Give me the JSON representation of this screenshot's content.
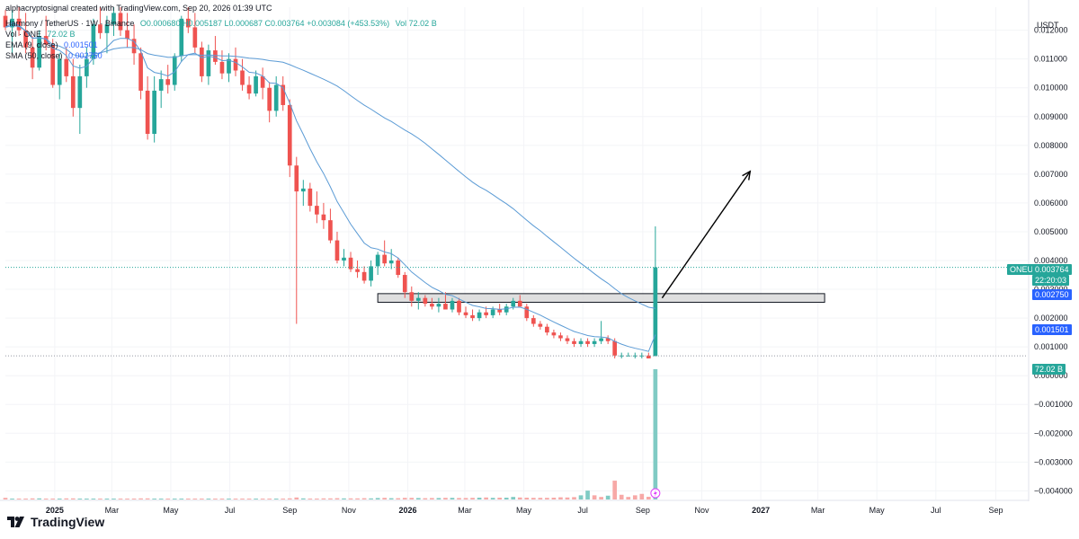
{
  "header": {
    "line1": "alphacryptosignal created with TradingView.com, Sep 20, 2026 01:39 UTC",
    "line2_symbol": "Harmony / TetherUS · 1W · Binance",
    "line2_ohlc": "O0.000680 H0.005187 L0.000687 C0.003764 +0.003084 (+453.53%)",
    "line2_vol": "Vol 72.02 B",
    "vol_label": "Vol · ONE",
    "vol_value": "72.02 B",
    "ema_label": "EMA (9, close)",
    "ema_value": "0.001501",
    "sma_label": "SMA (50, close)",
    "sma_value": "0.002750"
  },
  "price_axis": {
    "currency": "USDT",
    "ticks": [
      "0.012000",
      "0.011000",
      "0.010000",
      "0.009000",
      "0.008000",
      "0.007000",
      "0.006000",
      "0.005000",
      "0.004000",
      "0.003000",
      "0.002000",
      "0.001000",
      "0.000000",
      "−0.001000",
      "−0.002000",
      "−0.003000",
      "−0.004000"
    ]
  },
  "badges": {
    "symbol": "ONEUSDT",
    "last_price": "0.003764",
    "countdown": "22:20:03",
    "sma": "0.002750",
    "ema": "0.001501",
    "volume": "72.02 B"
  },
  "time_axis": [
    "2025",
    "Mar",
    "May",
    "Jul",
    "Sep",
    "Nov",
    "2026",
    "Mar",
    "May",
    "Jul",
    "Sep",
    "Nov",
    "2027",
    "Mar",
    "May",
    "Jul",
    "Sep"
  ],
  "branding": {
    "name": "TradingView"
  },
  "colors": {
    "up": "#26a69a",
    "down": "#ef5350",
    "ma": "#5b9bd5",
    "zone": "#d9d9d9",
    "badge_blue": "#2962ff"
  },
  "chart_data": {
    "type": "candlestick",
    "title": "Harmony / TetherUS · 1W · Binance",
    "price_unit": "USDT",
    "note_zone": {
      "low": 0.00255,
      "high": 0.00285
    },
    "projection_arrow": {
      "from": {
        "date": "2026-09-21",
        "price": 0.0027
      },
      "to": {
        "date": "2026-12-21",
        "price": 0.0071
      }
    },
    "candles": [
      [
        0.0125,
        0.0127,
        0.012,
        0.0121
      ],
      [
        0.0121,
        0.0127,
        0.0112,
        0.0124
      ],
      [
        0.0124,
        0.0128,
        0.0118,
        0.012
      ],
      [
        0.012,
        0.0126,
        0.0112,
        0.0114
      ],
      [
        0.0114,
        0.0118,
        0.0103,
        0.0107
      ],
      [
        0.0107,
        0.012,
        0.0106,
        0.0118
      ],
      [
        0.0118,
        0.0125,
        0.0113,
        0.0115
      ],
      [
        0.0115,
        0.0117,
        0.01,
        0.0101
      ],
      [
        0.0101,
        0.0112,
        0.0096,
        0.011
      ],
      [
        0.011,
        0.0114,
        0.0102,
        0.0104
      ],
      [
        0.0104,
        0.011,
        0.009,
        0.0093
      ],
      [
        0.0093,
        0.0108,
        0.0084,
        0.0104
      ],
      [
        0.0104,
        0.0114,
        0.01,
        0.011
      ],
      [
        0.011,
        0.0124,
        0.0108,
        0.0122
      ],
      [
        0.0122,
        0.0128,
        0.0117,
        0.0119
      ],
      [
        0.0119,
        0.0125,
        0.0112,
        0.0122
      ],
      [
        0.0122,
        0.0128,
        0.0118,
        0.0126
      ],
      [
        0.0126,
        0.0128,
        0.0118,
        0.012
      ],
      [
        0.012,
        0.0126,
        0.0114,
        0.0117
      ],
      [
        0.0117,
        0.0122,
        0.0108,
        0.0112
      ],
      [
        0.0112,
        0.0114,
        0.0096,
        0.0099
      ],
      [
        0.0099,
        0.0104,
        0.0082,
        0.0084
      ],
      [
        0.0084,
        0.0104,
        0.0081,
        0.0099
      ],
      [
        0.0099,
        0.0106,
        0.0093,
        0.0103
      ],
      [
        0.0103,
        0.0108,
        0.0098,
        0.0101
      ],
      [
        0.0101,
        0.0112,
        0.0099,
        0.0111
      ],
      [
        0.0111,
        0.0125,
        0.0109,
        0.0124
      ],
      [
        0.0124,
        0.0128,
        0.0119,
        0.0121
      ],
      [
        0.0121,
        0.0126,
        0.0112,
        0.0114
      ],
      [
        0.0114,
        0.0116,
        0.0102,
        0.0104
      ],
      [
        0.0104,
        0.0115,
        0.0101,
        0.0113
      ],
      [
        0.0113,
        0.0118,
        0.0108,
        0.0109
      ],
      [
        0.0109,
        0.0113,
        0.0103,
        0.0105
      ],
      [
        0.0105,
        0.0112,
        0.0102,
        0.011
      ],
      [
        0.011,
        0.0114,
        0.0104,
        0.0106
      ],
      [
        0.0106,
        0.011,
        0.0099,
        0.0101
      ],
      [
        0.0101,
        0.0104,
        0.0096,
        0.0098
      ],
      [
        0.0098,
        0.0106,
        0.0097,
        0.0104
      ],
      [
        0.0104,
        0.0107,
        0.0096,
        0.01
      ],
      [
        0.01,
        0.0102,
        0.0088,
        0.0092
      ],
      [
        0.0092,
        0.0104,
        0.009,
        0.0101
      ],
      [
        0.0101,
        0.0104,
        0.0092,
        0.0094
      ],
      [
        0.0094,
        0.0096,
        0.0069,
        0.0073
      ],
      [
        0.0073,
        0.0076,
        0.0018,
        0.0064
      ],
      [
        0.0064,
        0.0068,
        0.0059,
        0.0065
      ],
      [
        0.0065,
        0.0067,
        0.0057,
        0.0059
      ],
      [
        0.0059,
        0.0064,
        0.0053,
        0.0056
      ],
      [
        0.0056,
        0.006,
        0.0051,
        0.0054
      ],
      [
        0.0054,
        0.0058,
        0.0046,
        0.0047
      ],
      [
        0.0047,
        0.005,
        0.0039,
        0.004
      ],
      [
        0.004,
        0.0044,
        0.0038,
        0.0041
      ],
      [
        0.0041,
        0.0043,
        0.0036,
        0.0037
      ],
      [
        0.0037,
        0.004,
        0.0034,
        0.0036
      ],
      [
        0.0036,
        0.0038,
        0.0032,
        0.0033
      ],
      [
        0.0033,
        0.004,
        0.0031,
        0.0038
      ],
      [
        0.0038,
        0.0043,
        0.0035,
        0.0042
      ],
      [
        0.0042,
        0.0047,
        0.0038,
        0.0039
      ],
      [
        0.0039,
        0.0044,
        0.0037,
        0.004
      ],
      [
        0.004,
        0.0041,
        0.0034,
        0.0035
      ],
      [
        0.0035,
        0.0036,
        0.0027,
        0.0029
      ],
      [
        0.0029,
        0.0031,
        0.0024,
        0.0026
      ],
      [
        0.0026,
        0.0029,
        0.0023,
        0.0027
      ],
      [
        0.0027,
        0.0028,
        0.0024,
        0.0025
      ],
      [
        0.0025,
        0.0027,
        0.0023,
        0.0024
      ],
      [
        0.0024,
        0.0027,
        0.0022,
        0.0025
      ],
      [
        0.0025,
        0.0029,
        0.0023,
        0.0023
      ],
      [
        0.0023,
        0.0027,
        0.0022,
        0.0026
      ],
      [
        0.0026,
        0.0027,
        0.0021,
        0.0022
      ],
      [
        0.0022,
        0.0024,
        0.002,
        0.0021
      ],
      [
        0.0021,
        0.0023,
        0.0019,
        0.002
      ],
      [
        0.002,
        0.0023,
        0.0019,
        0.0022
      ],
      [
        0.0022,
        0.0024,
        0.002,
        0.0021
      ],
      [
        0.0021,
        0.0024,
        0.002,
        0.0023
      ],
      [
        0.0023,
        0.0025,
        0.0021,
        0.0022
      ],
      [
        0.0022,
        0.0025,
        0.0021,
        0.0024
      ],
      [
        0.0024,
        0.0027,
        0.0023,
        0.0026
      ],
      [
        0.0026,
        0.0028,
        0.0024,
        0.0024
      ],
      [
        0.0024,
        0.0025,
        0.0019,
        0.002
      ],
      [
        0.002,
        0.0021,
        0.0017,
        0.0018
      ],
      [
        0.0018,
        0.0019,
        0.0016,
        0.0017
      ],
      [
        0.0017,
        0.0018,
        0.0014,
        0.0015
      ],
      [
        0.0015,
        0.0016,
        0.0013,
        0.0014
      ],
      [
        0.0014,
        0.0015,
        0.0012,
        0.0013
      ],
      [
        0.0013,
        0.0014,
        0.0011,
        0.0012
      ],
      [
        0.0012,
        0.0013,
        0.001,
        0.0011
      ],
      [
        0.0011,
        0.0013,
        0.001,
        0.0012
      ],
      [
        0.0012,
        0.0013,
        0.001,
        0.0011
      ],
      [
        0.0011,
        0.0013,
        0.001,
        0.0012
      ],
      [
        0.0012,
        0.0019,
        0.0011,
        0.0013
      ],
      [
        0.0013,
        0.0014,
        0.0011,
        0.0012
      ],
      [
        0.0012,
        0.0013,
        0.0006,
        0.0007
      ],
      [
        0.0007,
        0.0008,
        0.0006,
        0.0007
      ],
      [
        0.0007,
        0.0008,
        0.0007,
        0.0007
      ],
      [
        0.0007,
        0.0008,
        0.0006,
        0.0007
      ],
      [
        0.0007,
        0.0008,
        0.0006,
        0.0007
      ],
      [
        0.0007,
        0.0008,
        0.0006,
        0.0006
      ],
      [
        0.00068,
        0.005187,
        0.000687,
        0.003764
      ]
    ],
    "volume_b": [
      0.9,
      0.4,
      0.4,
      0.5,
      0.6,
      0.6,
      0.5,
      0.5,
      0.5,
      0.6,
      0.6,
      0.5,
      0.4,
      0.5,
      0.5,
      0.5,
      0.4,
      0.4,
      0.4,
      0.5,
      0.6,
      0.6,
      0.5,
      0.4,
      0.4,
      0.4,
      0.5,
      0.5,
      0.5,
      0.5,
      0.4,
      0.4,
      0.4,
      0.4,
      0.4,
      0.5,
      0.4,
      0.4,
      0.4,
      0.4,
      0.4,
      0.4,
      0.6,
      1.1,
      0.6,
      0.5,
      0.5,
      0.6,
      0.6,
      0.7,
      0.6,
      0.6,
      0.6,
      0.7,
      0.6,
      0.8,
      0.9,
      0.7,
      0.7,
      0.9,
      0.9,
      0.8,
      0.7,
      0.8,
      0.8,
      0.9,
      0.9,
      0.8,
      0.8,
      0.9,
      1.0,
      1.1,
      0.9,
      1.0,
      1.0,
      1.4,
      1.1,
      1.0,
      0.9,
      0.9,
      0.9,
      1.0,
      1.2,
      1.1,
      1.3,
      2.3,
      4.9,
      2.3,
      1.4,
      2.1,
      10.4,
      2.6,
      1.4,
      2.3,
      3.1,
      1.5,
      72.02
    ],
    "volume_up": [
      false,
      true,
      false,
      false,
      false,
      true,
      false,
      false,
      true,
      false,
      false,
      true,
      true,
      true,
      false,
      true,
      true,
      false,
      false,
      false,
      false,
      false,
      true,
      true,
      false,
      true,
      true,
      false,
      false,
      false,
      true,
      false,
      false,
      true,
      false,
      false,
      false,
      true,
      false,
      false,
      true,
      false,
      false,
      false,
      true,
      false,
      false,
      false,
      false,
      false,
      true,
      false,
      false,
      false,
      true,
      true,
      false,
      true,
      false,
      false,
      false,
      true,
      false,
      false,
      true,
      false,
      true,
      false,
      false,
      false,
      true,
      false,
      true,
      false,
      true,
      true,
      false,
      false,
      false,
      false,
      false,
      false,
      false,
      false,
      false,
      true,
      true,
      false,
      false,
      true,
      false,
      false,
      false,
      false,
      false,
      false,
      true
    ],
    "ylim": [
      -0.0043,
      0.0128
    ],
    "x_start": "2024-11-11",
    "x_end": "2027-10-04"
  }
}
